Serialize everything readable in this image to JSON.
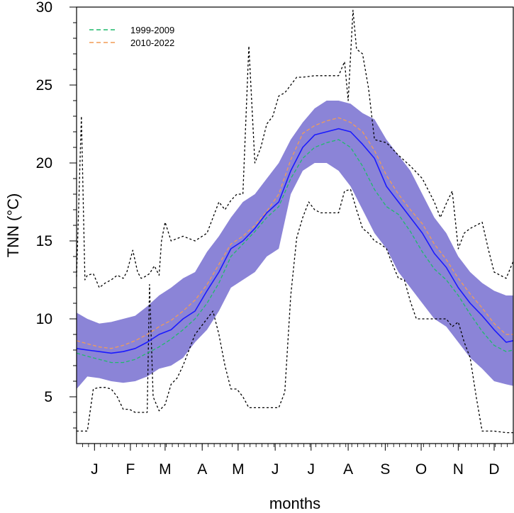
{
  "chart_data": {
    "type": "line",
    "title": "",
    "xlabel": "months",
    "ylabel": "TNN (°C)",
    "ylim": [
      2,
      30
    ],
    "xlim": [
      1,
      366
    ],
    "y_ticks": [
      5,
      10,
      15,
      20,
      25,
      30
    ],
    "month_ticks": [
      {
        "label": "J",
        "day": 16
      },
      {
        "label": "F",
        "day": 46
      },
      {
        "label": "M",
        "day": 75
      },
      {
        "label": "A",
        "day": 106
      },
      {
        "label": "M",
        "day": 136
      },
      {
        "label": "J",
        "day": 167
      },
      {
        "label": "J",
        "day": 197
      },
      {
        "label": "A",
        "day": 228
      },
      {
        "label": "S",
        "day": 259
      },
      {
        "label": "O",
        "day": 289
      },
      {
        "label": "N",
        "day": 320
      },
      {
        "label": "D",
        "day": 350
      }
    ],
    "legend": {
      "position": "top-left",
      "entries": [
        {
          "name": "1999-2009",
          "color": "#1fba6b",
          "dash": "dashed"
        },
        {
          "name": "2010-2022",
          "color": "#f29c56",
          "dash": "dashed"
        }
      ]
    },
    "band": {
      "color": "#8b84d7",
      "x": [
        1,
        10,
        20,
        30,
        40,
        50,
        60,
        70,
        80,
        90,
        100,
        110,
        120,
        130,
        140,
        150,
        160,
        170,
        180,
        190,
        200,
        210,
        220,
        230,
        240,
        250,
        260,
        270,
        280,
        290,
        300,
        310,
        320,
        330,
        340,
        350,
        360,
        366
      ],
      "upper": [
        10.4,
        10.0,
        9.7,
        9.8,
        10.0,
        10.2,
        10.8,
        11.5,
        12.0,
        12.6,
        13.0,
        14.3,
        15.3,
        16.5,
        17.5,
        18.0,
        19.0,
        20.0,
        21.5,
        22.6,
        23.5,
        24.0,
        24.0,
        23.8,
        23.2,
        22.8,
        21.5,
        20.5,
        19.5,
        18.0,
        16.5,
        15.5,
        14.0,
        13.0,
        12.3,
        11.8,
        11.5,
        11.5
      ],
      "lower": [
        5.5,
        6.3,
        6.2,
        6.0,
        5.9,
        6.0,
        6.3,
        6.8,
        7.0,
        7.5,
        8.5,
        9.3,
        10.5,
        12.0,
        12.5,
        13.0,
        14.0,
        14.5,
        18.0,
        19.5,
        20.0,
        20.0,
        19.5,
        18.5,
        17.0,
        15.5,
        14.5,
        13.0,
        12.0,
        11.0,
        10.0,
        9.5,
        8.5,
        7.5,
        6.8,
        6.0,
        5.8,
        5.7
      ]
    },
    "series": [
      {
        "color": "#1a1aff",
        "style": "solid",
        "x": [
          1,
          10,
          20,
          30,
          40,
          50,
          60,
          70,
          80,
          90,
          100,
          110,
          120,
          130,
          140,
          150,
          160,
          170,
          180,
          190,
          200,
          210,
          220,
          230,
          240,
          250,
          260,
          270,
          280,
          290,
          300,
          310,
          320,
          330,
          340,
          350,
          360,
          366
        ],
        "values": [
          8.1,
          8.0,
          7.9,
          7.8,
          7.9,
          8.1,
          8.5,
          9.0,
          9.3,
          10.0,
          10.5,
          11.8,
          13.0,
          14.5,
          15.0,
          15.8,
          16.8,
          17.5,
          19.5,
          21.0,
          21.8,
          22.0,
          22.2,
          22.0,
          21.2,
          20.3,
          18.5,
          17.5,
          16.5,
          15.5,
          14.2,
          13.3,
          12.0,
          11.0,
          10.2,
          9.3,
          8.5,
          8.6
        ]
      },
      {
        "name": "1999-2009",
        "color": "#1fba6b",
        "style": "dashed",
        "x": [
          1,
          10,
          20,
          30,
          40,
          50,
          60,
          70,
          80,
          90,
          100,
          110,
          120,
          130,
          140,
          150,
          160,
          170,
          180,
          190,
          200,
          210,
          220,
          230,
          240,
          250,
          260,
          270,
          280,
          290,
          300,
          310,
          320,
          330,
          340,
          350,
          360,
          366
        ],
        "values": [
          7.8,
          7.6,
          7.4,
          7.2,
          7.2,
          7.4,
          7.8,
          8.2,
          8.7,
          9.3,
          10.0,
          11.0,
          12.3,
          14.0,
          14.8,
          15.6,
          16.5,
          17.2,
          19.0,
          20.3,
          21.0,
          21.3,
          21.5,
          21.0,
          19.8,
          18.3,
          17.2,
          16.7,
          15.6,
          14.3,
          13.2,
          12.5,
          11.5,
          10.3,
          9.2,
          8.3,
          7.9,
          8.0
        ]
      },
      {
        "name": "2010-2022",
        "color": "#f29c56",
        "style": "dashed",
        "x": [
          1,
          10,
          20,
          30,
          40,
          50,
          60,
          70,
          80,
          90,
          100,
          110,
          120,
          130,
          140,
          150,
          160,
          170,
          180,
          190,
          200,
          210,
          220,
          230,
          240,
          250,
          260,
          270,
          280,
          290,
          300,
          310,
          320,
          330,
          340,
          350,
          360,
          366
        ],
        "values": [
          8.6,
          8.4,
          8.2,
          8.1,
          8.3,
          8.6,
          9.0,
          9.5,
          9.9,
          10.5,
          11.2,
          12.2,
          13.5,
          14.8,
          15.3,
          16.0,
          16.9,
          18.0,
          20.2,
          21.9,
          22.4,
          22.7,
          22.9,
          22.6,
          22.0,
          20.8,
          19.2,
          18.0,
          17.0,
          16.1,
          14.8,
          13.8,
          12.6,
          11.6,
          10.7,
          9.7,
          9.0,
          9.0
        ]
      },
      {
        "color": "#000000",
        "style": "dotted",
        "x": [
          1,
          5,
          8,
          10,
          15,
          20,
          25,
          30,
          35,
          40,
          43,
          48,
          52,
          55,
          58,
          62,
          66,
          70,
          72,
          75,
          80,
          90,
          100,
          110,
          115,
          120,
          125,
          130,
          135,
          140,
          145,
          150,
          155,
          160,
          165,
          170,
          175,
          180,
          185,
          190,
          200,
          210,
          220,
          225,
          228,
          232,
          235,
          240,
          245,
          250,
          260,
          270,
          280,
          290,
          300,
          305,
          310,
          315,
          320,
          325,
          330,
          335,
          340,
          345,
          350,
          355,
          360,
          366
        ],
        "values": [
          12.7,
          23.0,
          12.5,
          12.8,
          12.9,
          12.0,
          12.3,
          12.5,
          12.8,
          12.6,
          13.0,
          14.4,
          13.0,
          12.6,
          12.7,
          12.9,
          13.4,
          12.8,
          15.0,
          16.2,
          15.0,
          15.3,
          15.0,
          15.5,
          16.5,
          17.5,
          17.0,
          17.6,
          18.0,
          18.0,
          27.5,
          20.0,
          21.0,
          22.5,
          23.0,
          24.3,
          24.5,
          25.0,
          25.5,
          25.5,
          25.6,
          25.6,
          25.6,
          26.5,
          24.0,
          29.8,
          27.3,
          27.0,
          24.8,
          21.5,
          21.3,
          20.5,
          19.8,
          19.0,
          17.5,
          16.5,
          17.4,
          18.2,
          14.5,
          15.5,
          15.8,
          16.0,
          16.2,
          14.5,
          13.0,
          12.8,
          12.6,
          13.7
        ]
      },
      {
        "color": "#000000",
        "style": "dotted",
        "x": [
          1,
          10,
          15,
          20,
          25,
          30,
          35,
          40,
          45,
          50,
          55,
          60,
          62,
          65,
          70,
          75,
          80,
          85,
          90,
          95,
          100,
          105,
          110,
          115,
          120,
          125,
          130,
          135,
          140,
          145,
          150,
          160,
          170,
          175,
          180,
          185,
          190,
          195,
          200,
          205,
          210,
          215,
          220,
          225,
          230,
          235,
          240,
          245,
          250,
          255,
          260,
          265,
          270,
          275,
          280,
          285,
          290,
          295,
          300,
          305,
          310,
          315,
          320,
          325,
          330,
          335,
          340,
          350,
          360,
          366
        ],
        "values": [
          2.8,
          2.8,
          5.5,
          5.6,
          5.6,
          5.5,
          5.0,
          4.2,
          4.2,
          4.0,
          4.0,
          4.0,
          12.2,
          5.0,
          4.1,
          4.5,
          5.8,
          6.2,
          7.0,
          8.0,
          9.0,
          9.5,
          10.0,
          10.5,
          9.0,
          7.0,
          5.5,
          5.5,
          5.0,
          4.3,
          4.3,
          4.3,
          4.3,
          5.3,
          11.5,
          15.2,
          16.5,
          17.5,
          17.0,
          16.8,
          16.8,
          16.8,
          16.8,
          18.2,
          18.3,
          17.0,
          15.8,
          15.5,
          15.0,
          14.8,
          14.5,
          13.5,
          12.6,
          12.5,
          11.1,
          10.0,
          10.0,
          10.0,
          10.0,
          10.0,
          10.0,
          9.5,
          9.8,
          8.5,
          7.5,
          5.0,
          2.8,
          2.8,
          2.7,
          2.7
        ]
      }
    ]
  }
}
